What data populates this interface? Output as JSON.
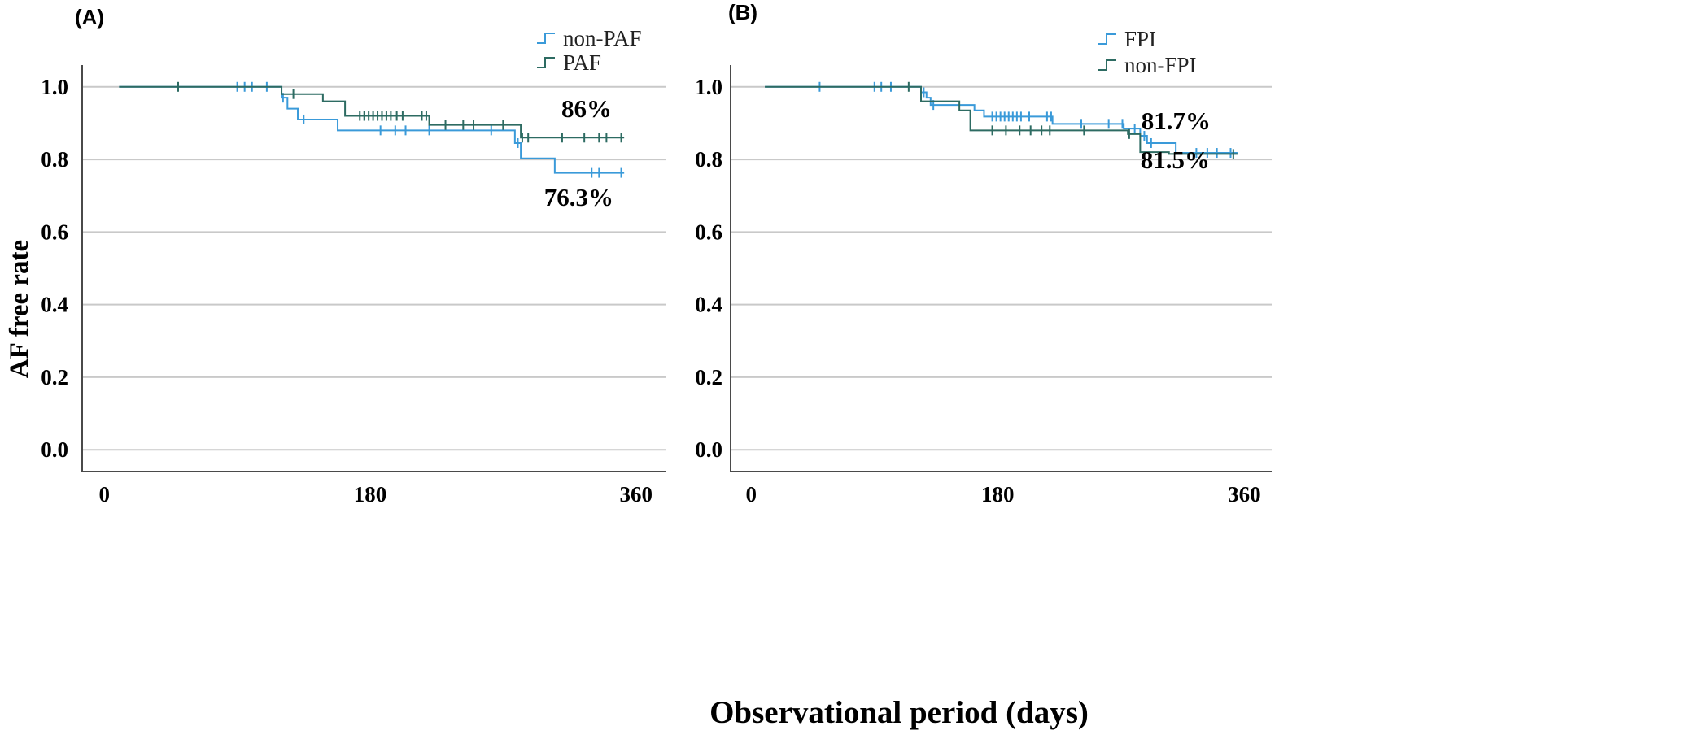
{
  "figure": {
    "xlabel": "Observational period (days)",
    "ylabel": "AF free rate"
  },
  "chart_data": [
    {
      "type": "line",
      "subtype": "kaplan-meier",
      "panel_label": "(A)",
      "xlim": [
        -15,
        380
      ],
      "ylim": [
        -0.06,
        1.06
      ],
      "x_ticks": [
        0,
        180,
        360
      ],
      "y_ticks": [
        0.0,
        0.2,
        0.4,
        0.6,
        0.8,
        1.0
      ],
      "y_tick_labels": [
        "0.0",
        "0.2",
        "0.4",
        "0.6",
        "0.8",
        "1.0"
      ],
      "grid": "horizontal",
      "legend_position": "top-right",
      "series": [
        {
          "name": "non-PAF",
          "color": "#3a9ad9",
          "steps": [
            [
              10,
              1.0
            ],
            [
              120,
              0.97
            ],
            [
              124,
              0.94
            ],
            [
              131,
              0.91
            ],
            [
              158,
              0.88
            ],
            [
              278,
              0.845
            ],
            [
              282,
              0.803
            ],
            [
              305,
              0.763
            ],
            [
              352,
              0.763
            ]
          ],
          "censored": [
            [
              90,
              1.0
            ],
            [
              95,
              1.0
            ],
            [
              100,
              1.0
            ],
            [
              110,
              1.0
            ],
            [
              121,
              0.97
            ],
            [
              135,
              0.91
            ],
            [
              187,
              0.88
            ],
            [
              197,
              0.88
            ],
            [
              204,
              0.88
            ],
            [
              220,
              0.88
            ],
            [
              262,
              0.88
            ],
            [
              280,
              0.845
            ],
            [
              330,
              0.763
            ],
            [
              335,
              0.763
            ],
            [
              350,
              0.763
            ]
          ],
          "end_label": "76.3%"
        },
        {
          "name": "PAF",
          "color": "#2d6b62",
          "steps": [
            [
              10,
              1.0
            ],
            [
              120,
              0.98
            ],
            [
              148,
              0.96
            ],
            [
              163,
              0.92
            ],
            [
              220,
              0.895
            ],
            [
              275,
              0.895
            ],
            [
              282,
              0.86
            ],
            [
              352,
              0.86
            ]
          ],
          "censored": [
            [
              50,
              1.0
            ],
            [
              128,
              0.98
            ],
            [
              173,
              0.92
            ],
            [
              176,
              0.92
            ],
            [
              179,
              0.92
            ],
            [
              182,
              0.92
            ],
            [
              185,
              0.92
            ],
            [
              188,
              0.92
            ],
            [
              191,
              0.92
            ],
            [
              194,
              0.92
            ],
            [
              198,
              0.92
            ],
            [
              202,
              0.92
            ],
            [
              215,
              0.92
            ],
            [
              218,
              0.92
            ],
            [
              231,
              0.895
            ],
            [
              243,
              0.895
            ],
            [
              250,
              0.895
            ],
            [
              270,
              0.895
            ],
            [
              283,
              0.86
            ],
            [
              287,
              0.86
            ],
            [
              310,
              0.86
            ],
            [
              325,
              0.86
            ],
            [
              335,
              0.86
            ],
            [
              340,
              0.86
            ],
            [
              350,
              0.86
            ]
          ],
          "end_label": "86%"
        }
      ]
    },
    {
      "type": "line",
      "subtype": "kaplan-meier",
      "panel_label": "(B)",
      "xlim": [
        -15,
        380
      ],
      "ylim": [
        -0.06,
        1.06
      ],
      "x_ticks": [
        0,
        180,
        360
      ],
      "y_ticks": [
        0.0,
        0.2,
        0.4,
        0.6,
        0.8,
        1.0
      ],
      "y_tick_labels": [
        "0.0",
        "0.2",
        "0.4",
        "0.6",
        "0.8",
        "1.0"
      ],
      "grid": "horizontal",
      "legend_position": "top-right",
      "series": [
        {
          "name": "FPI",
          "color": "#3a9ad9",
          "steps": [
            [
              10,
              1.0
            ],
            [
              124,
              0.985
            ],
            [
              128,
              0.97
            ],
            [
              131,
              0.95
            ],
            [
              150,
              0.95
            ],
            [
              163,
              0.935
            ],
            [
              170,
              0.918
            ],
            [
              220,
              0.898
            ],
            [
              272,
              0.885
            ],
            [
              284,
              0.865
            ],
            [
              289,
              0.845
            ],
            [
              300,
              0.845
            ],
            [
              310,
              0.818
            ],
            [
              355,
              0.818
            ]
          ],
          "censored": [
            [
              50,
              1.0
            ],
            [
              90,
              1.0
            ],
            [
              95,
              1.0
            ],
            [
              102,
              1.0
            ],
            [
              126,
              0.985
            ],
            [
              133,
              0.95
            ],
            [
              176,
              0.918
            ],
            [
              179,
              0.918
            ],
            [
              182,
              0.918
            ],
            [
              185,
              0.918
            ],
            [
              188,
              0.918
            ],
            [
              191,
              0.918
            ],
            [
              194,
              0.918
            ],
            [
              197,
              0.918
            ],
            [
              203,
              0.918
            ],
            [
              216,
              0.918
            ],
            [
              219,
              0.918
            ],
            [
              241,
              0.898
            ],
            [
              261,
              0.898
            ],
            [
              271,
              0.898
            ],
            [
              280,
              0.885
            ],
            [
              287,
              0.865
            ],
            [
              292,
              0.845
            ],
            [
              325,
              0.818
            ],
            [
              333,
              0.818
            ],
            [
              340,
              0.818
            ],
            [
              350,
              0.818
            ]
          ],
          "end_label": "81.7%"
        },
        {
          "name": "non-FPI",
          "color": "#2d6b62",
          "steps": [
            [
              10,
              1.0
            ],
            [
              124,
              0.96
            ],
            [
              152,
              0.935
            ],
            [
              160,
              0.88
            ],
            [
              275,
              0.87
            ],
            [
              284,
              0.82
            ],
            [
              305,
              0.815
            ],
            [
              355,
              0.815
            ]
          ],
          "censored": [
            [
              115,
              1.0
            ],
            [
              176,
              0.88
            ],
            [
              186,
              0.88
            ],
            [
              196,
              0.88
            ],
            [
              204,
              0.88
            ],
            [
              212,
              0.88
            ],
            [
              218,
              0.88
            ],
            [
              243,
              0.88
            ],
            [
              276,
              0.87
            ],
            [
              352,
              0.815
            ]
          ],
          "end_label": "81.5%"
        }
      ]
    }
  ]
}
